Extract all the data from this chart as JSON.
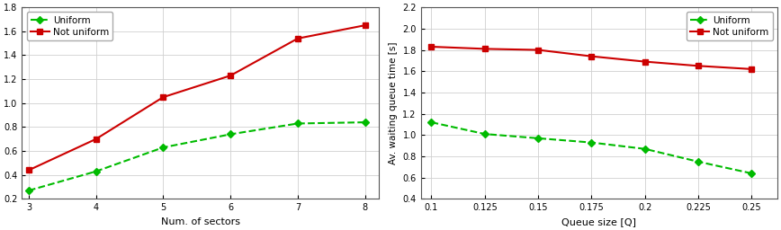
{
  "left": {
    "x": [
      3,
      4,
      5,
      6,
      7,
      8
    ],
    "uniform_y": [
      0.27,
      0.43,
      0.63,
      0.74,
      0.83,
      0.84
    ],
    "not_uniform_y": [
      0.44,
      0.7,
      1.05,
      1.23,
      1.54,
      1.65
    ],
    "xlabel": "Num. of sectors",
    "ylim": [
      0.2,
      1.8
    ],
    "yticks": [
      0.2,
      0.4,
      0.6,
      0.8,
      1.0,
      1.2,
      1.4,
      1.6,
      1.8
    ],
    "xticks": [
      3,
      4,
      5,
      6,
      7,
      8
    ],
    "xlim": [
      2.9,
      8.2
    ]
  },
  "right": {
    "x": [
      0.1,
      0.125,
      0.15,
      0.175,
      0.2,
      0.225,
      0.25
    ],
    "uniform_y": [
      1.12,
      1.01,
      0.97,
      0.93,
      0.87,
      0.75,
      0.64
    ],
    "not_uniform_y": [
      1.83,
      1.81,
      1.8,
      1.74,
      1.69,
      1.65,
      1.62
    ],
    "xlabel": "Queue size [Q]",
    "ylabel": "Av. waiting queue time [s]",
    "ylim": [
      0.4,
      2.2
    ],
    "yticks": [
      0.4,
      0.6,
      0.8,
      1.0,
      1.2,
      1.4,
      1.6,
      1.8,
      2.0,
      2.2
    ],
    "xticks": [
      0.1,
      0.125,
      0.15,
      0.175,
      0.2,
      0.225,
      0.25
    ],
    "xlim": [
      0.095,
      0.262
    ]
  },
  "uniform_color": "#00bb00",
  "not_uniform_color": "#cc0000",
  "legend_uniform": "Uniform",
  "legend_not_uniform": "Not uniform",
  "bg_color": "#ffffff",
  "grid_color": "#d0d0d0",
  "tick_fontsize": 7,
  "label_fontsize": 8,
  "legend_fontsize": 7.5
}
